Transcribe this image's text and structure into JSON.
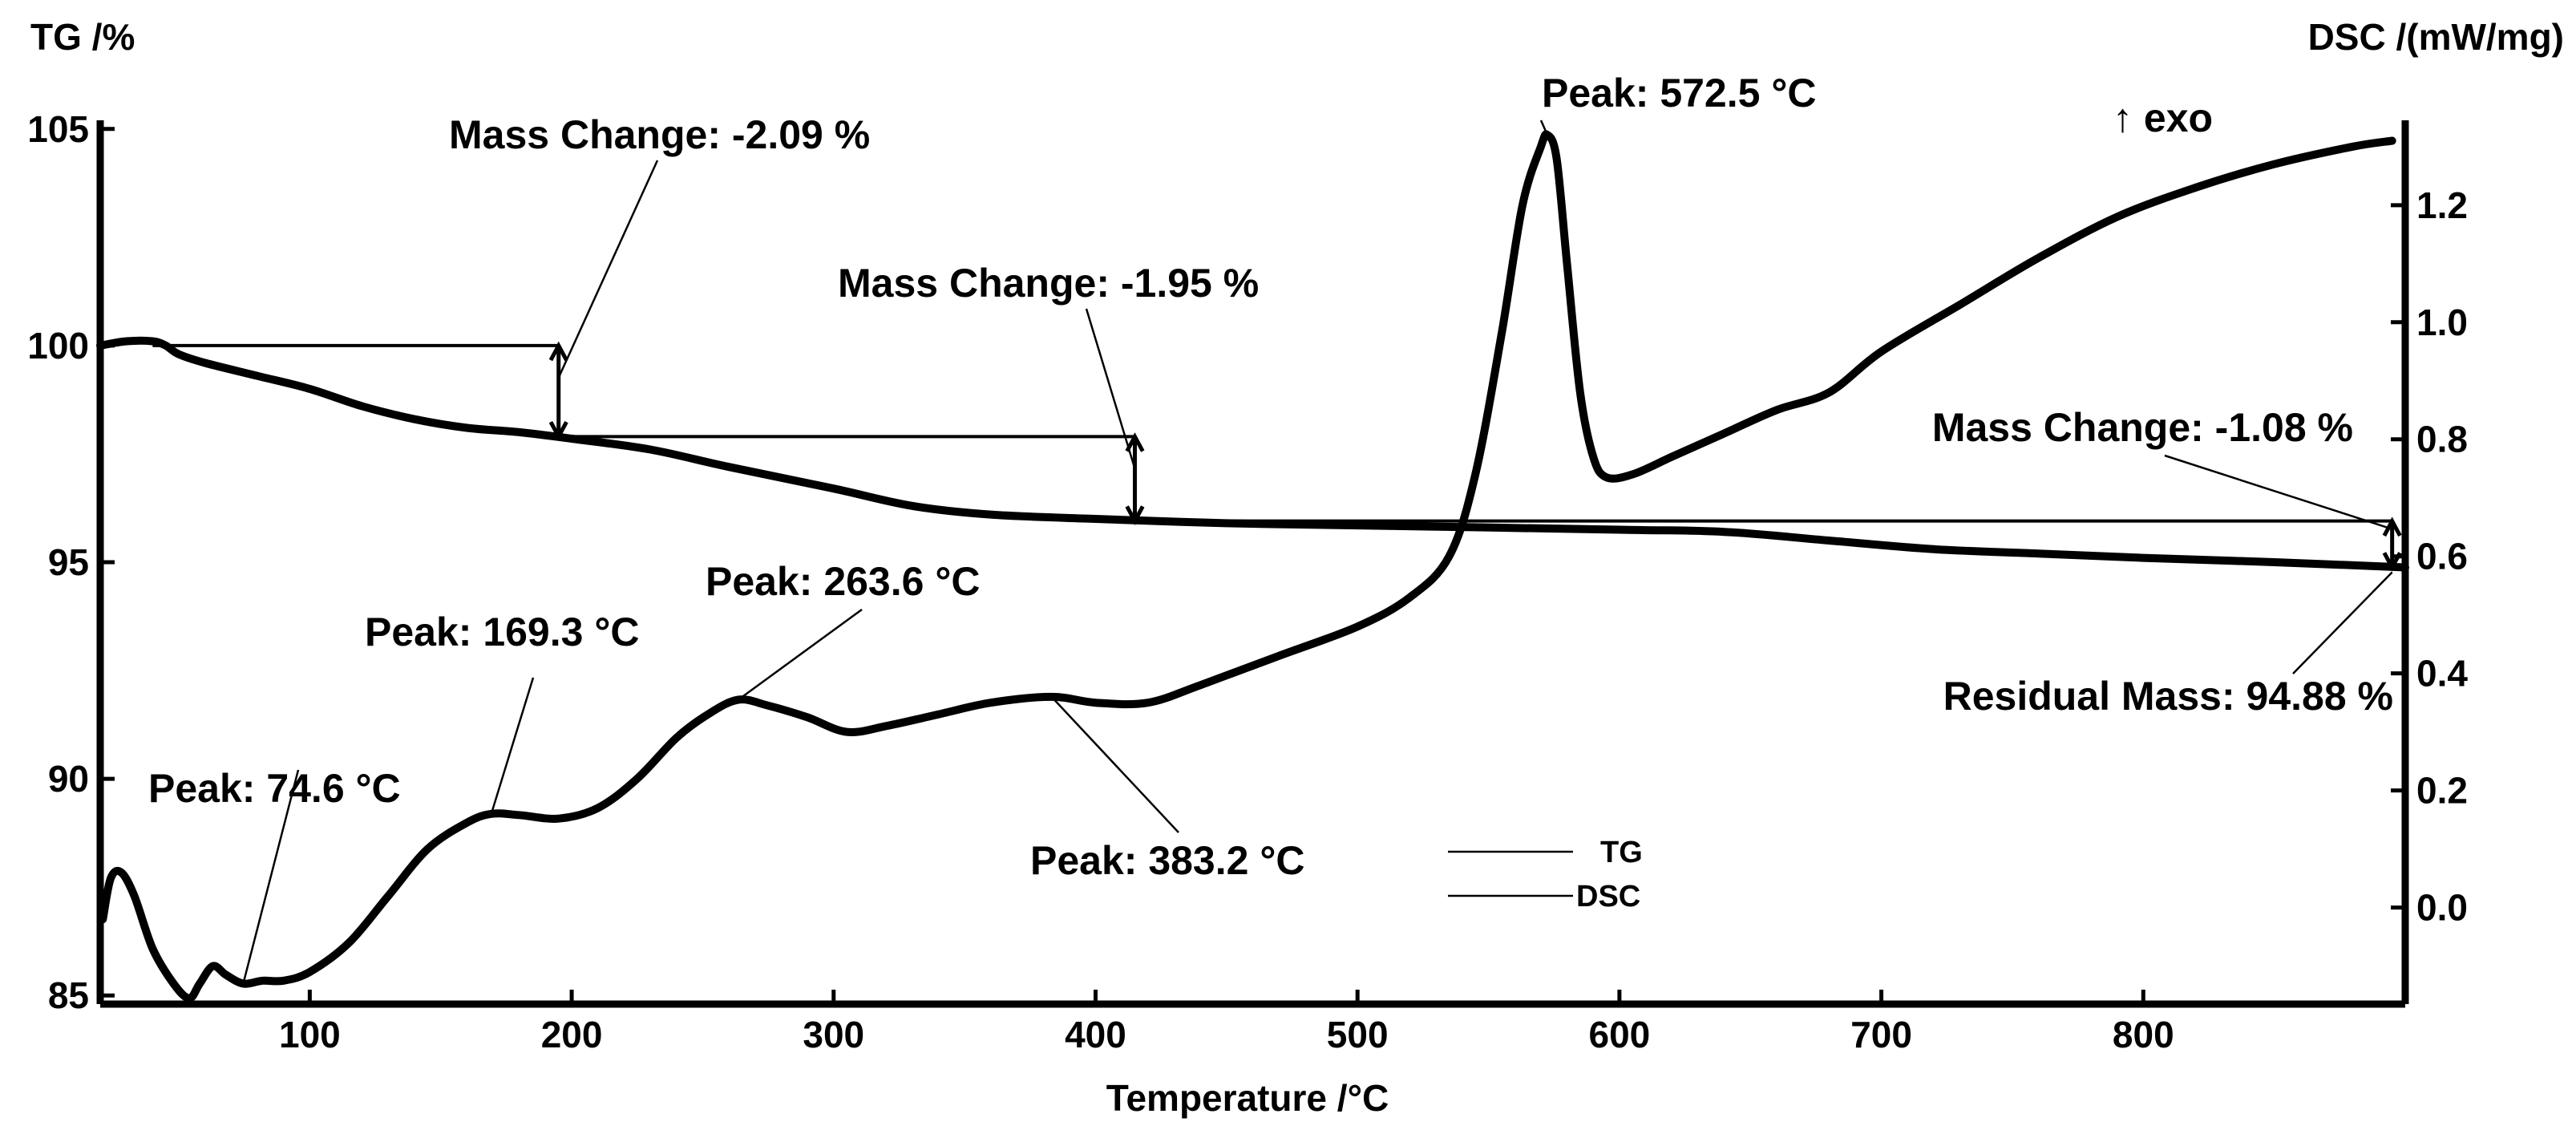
{
  "chart_data": {
    "type": "line",
    "x_axis": {
      "label": "Temperature /°C",
      "ticks": [
        100,
        200,
        300,
        400,
        500,
        600,
        700,
        800
      ],
      "range": [
        20,
        900
      ]
    },
    "y_left": {
      "label": "TG /%",
      "ticks": [
        85,
        90,
        95,
        100,
        105
      ],
      "range": [
        84.8,
        105.2
      ]
    },
    "y_right": {
      "label": "DSC /(mW/mg)",
      "ticks": [
        "0.0",
        "0.2",
        "0.4",
        "0.6",
        "0.8",
        "1.0",
        "1.2"
      ],
      "tick_values": [
        0.0,
        0.2,
        0.4,
        0.6,
        0.8,
        1.0,
        1.2
      ],
      "range": [
        -0.165,
        1.345
      ]
    },
    "exo_label": "↑ exo",
    "series": [
      {
        "name": "TG",
        "axis": "left",
        "points": [
          [
            20,
            100.0
          ],
          [
            30,
            100.1
          ],
          [
            40,
            100.1
          ],
          [
            45,
            100.0
          ],
          [
            50,
            99.8
          ],
          [
            60,
            99.6
          ],
          [
            80,
            99.3
          ],
          [
            100,
            99.0
          ],
          [
            120,
            98.6
          ],
          [
            140,
            98.3
          ],
          [
            160,
            98.1
          ],
          [
            180,
            98.0
          ],
          [
            200,
            97.85
          ],
          [
            230,
            97.6
          ],
          [
            260,
            97.2
          ],
          [
            300,
            96.7
          ],
          [
            330,
            96.3
          ],
          [
            360,
            96.1
          ],
          [
            400,
            96.0
          ],
          [
            450,
            95.9
          ],
          [
            500,
            95.85
          ],
          [
            600,
            95.75
          ],
          [
            640,
            95.7
          ],
          [
            680,
            95.5
          ],
          [
            720,
            95.3
          ],
          [
            760,
            95.2
          ],
          [
            800,
            95.1
          ],
          [
            850,
            95.0
          ],
          [
            900,
            94.88
          ]
        ]
      },
      {
        "name": "DSC",
        "axis": "right",
        "points": [
          [
            21,
            -0.02
          ],
          [
            24,
            0.05
          ],
          [
            28,
            0.06
          ],
          [
            33,
            0.02
          ],
          [
            40,
            -0.07
          ],
          [
            48,
            -0.13
          ],
          [
            54,
            -0.155
          ],
          [
            58,
            -0.13
          ],
          [
            63,
            -0.1
          ],
          [
            68,
            -0.115
          ],
          [
            74.6,
            -0.13
          ],
          [
            82,
            -0.125
          ],
          [
            90,
            -0.125
          ],
          [
            100,
            -0.11
          ],
          [
            115,
            -0.06
          ],
          [
            130,
            0.02
          ],
          [
            145,
            0.1
          ],
          [
            160,
            0.145
          ],
          [
            169.3,
            0.16
          ],
          [
            180,
            0.158
          ],
          [
            195,
            0.152
          ],
          [
            210,
            0.17
          ],
          [
            225,
            0.22
          ],
          [
            240,
            0.29
          ],
          [
            252,
            0.33
          ],
          [
            263.6,
            0.355
          ],
          [
            275,
            0.345
          ],
          [
            290,
            0.325
          ],
          [
            305,
            0.3
          ],
          [
            320,
            0.31
          ],
          [
            340,
            0.33
          ],
          [
            360,
            0.35
          ],
          [
            383.2,
            0.36
          ],
          [
            400,
            0.35
          ],
          [
            420,
            0.35
          ],
          [
            440,
            0.38
          ],
          [
            470,
            0.43
          ],
          [
            500,
            0.48
          ],
          [
            520,
            0.53
          ],
          [
            535,
            0.6
          ],
          [
            545,
            0.74
          ],
          [
            555,
            0.98
          ],
          [
            563,
            1.2
          ],
          [
            570,
            1.3
          ],
          [
            572.5,
            1.32
          ],
          [
            576,
            1.28
          ],
          [
            580,
            1.1
          ],
          [
            585,
            0.88
          ],
          [
            590,
            0.77
          ],
          [
            595,
            0.735
          ],
          [
            605,
            0.74
          ],
          [
            620,
            0.77
          ],
          [
            640,
            0.81
          ],
          [
            660,
            0.85
          ],
          [
            680,
            0.88
          ],
          [
            700,
            0.95
          ],
          [
            730,
            1.03
          ],
          [
            760,
            1.11
          ],
          [
            790,
            1.18
          ],
          [
            820,
            1.23
          ],
          [
            850,
            1.27
          ],
          [
            880,
            1.3
          ],
          [
            895,
            1.31
          ]
        ]
      }
    ],
    "mass_changes": [
      {
        "label": "Mass Change: -2.09 %",
        "x": 195,
        "from": 100.0,
        "to": 97.9,
        "level_start_x": 40
      },
      {
        "label": "Mass Change: -1.95 %",
        "x": 415,
        "from": 97.9,
        "to": 95.95,
        "level_start_x": 195
      },
      {
        "label": "Mass Change: -1.08 %",
        "x": 895,
        "from": 95.95,
        "to": 94.88,
        "level_start_x": 415
      }
    ],
    "residual_mass": {
      "label": "Residual Mass: 94.88 %",
      "x": 895,
      "value": 94.88
    },
    "peaks": [
      {
        "label": "Peak: 74.6 °C",
        "x": 74.6,
        "y": -0.13
      },
      {
        "label": "Peak: 169.3 °C",
        "x": 169.3,
        "y": 0.16
      },
      {
        "label": "Peak: 263.6 °C",
        "x": 263.6,
        "y": 0.355
      },
      {
        "label": "Peak: 383.2 °C",
        "x": 383.2,
        "y": 0.36
      },
      {
        "label": "Peak: 572.5 °C",
        "x": 572.5,
        "y": 1.32
      }
    ],
    "legend": [
      {
        "name": "TG",
        "label": "TG"
      },
      {
        "name": "DSC",
        "label": "DSC"
      }
    ]
  }
}
